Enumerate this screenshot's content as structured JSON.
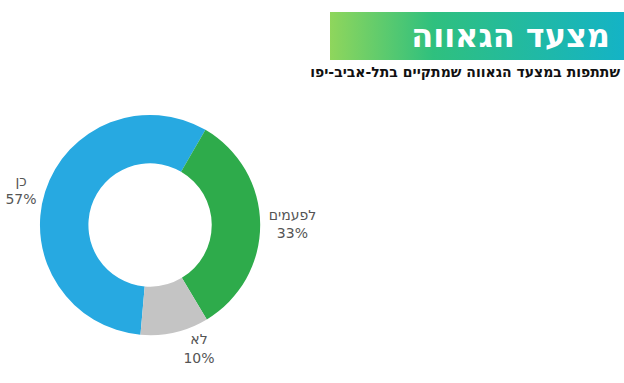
{
  "chart_data": {
    "type": "pie",
    "title": "מצעד הגאווה",
    "subtitle": "שתתפות במצעד הגאווה שמתקיים בתל-אביב-יפו",
    "categories": [
      "כן",
      "לפעמים",
      "לא"
    ],
    "values": [
      57,
      33,
      10
    ],
    "value_labels": [
      "57%",
      "33%",
      "10%"
    ],
    "colors": [
      "#27a9e1",
      "#2eab4b",
      "#c4c4c4"
    ],
    "data_labels": true
  }
}
